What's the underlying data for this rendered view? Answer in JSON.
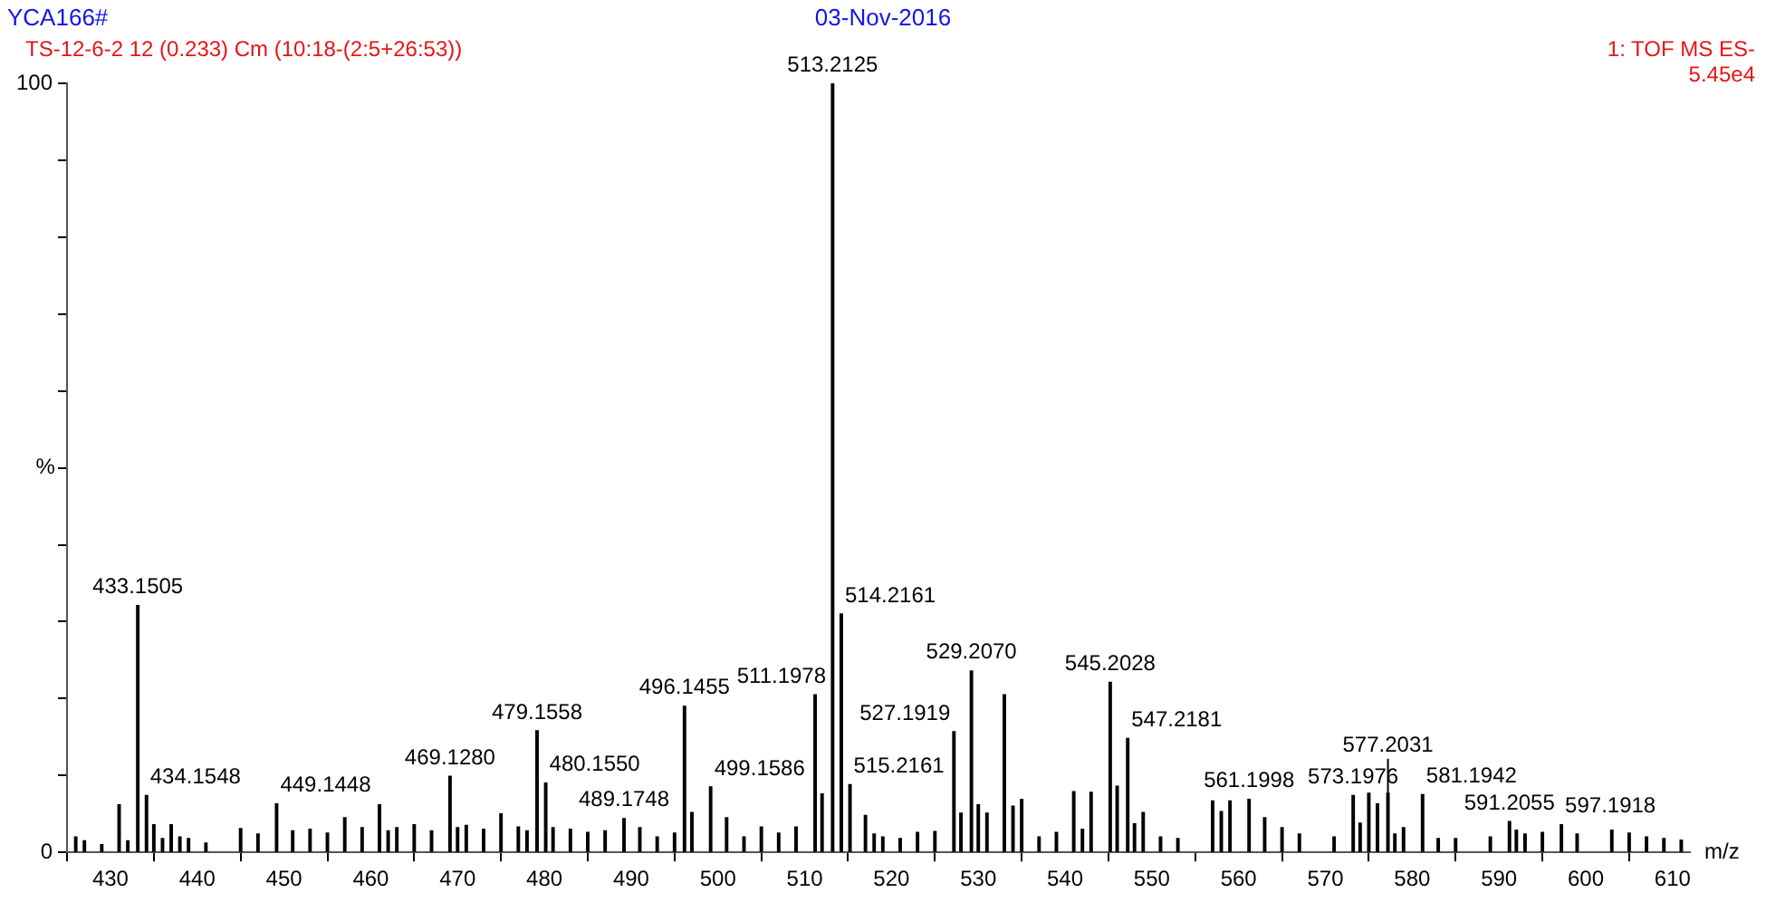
{
  "chart_data": {
    "type": "bar",
    "title": "YCA166#",
    "xlabel": "m/z",
    "ylabel": "%",
    "annotations": [
      "03-Nov-2016",
      "TS-12-6-2 12 (0.233) Cm (10:18-(2:5+26:53))",
      "1: TOF MS ES-",
      "5.45e4",
      {
        "text": "433.1505",
        "x": 433.1505,
        "y": 32.1
      },
      {
        "text": "434.1548",
        "x": 434.1548,
        "y": 7.4
      },
      {
        "text": "449.1448",
        "x": 449.1448,
        "y": 6.3
      },
      {
        "text": "469.1280",
        "x": 469.128,
        "y": 9.9
      },
      {
        "text": "479.1558",
        "x": 479.1558,
        "y": 15.8
      },
      {
        "text": "480.1550",
        "x": 480.155,
        "y": 9
      },
      {
        "text": "489.1748",
        "x": 489.1748,
        "y": 4.4
      },
      {
        "text": "496.1455",
        "x": 496.1455,
        "y": 19
      },
      {
        "text": "499.1586",
        "x": 499.1586,
        "y": 8.5
      },
      {
        "text": "511.1978",
        "x": 511.1978,
        "y": 20.5
      },
      {
        "text": "513.2125",
        "x": 513.2125,
        "y": 100
      },
      {
        "text": "514.2161",
        "x": 514.2161,
        "y": 31
      },
      {
        "text": "515.2161",
        "x": 515.2161,
        "y": 8.8
      },
      {
        "text": "527.1919",
        "x": 527.1919,
        "y": 15.7
      },
      {
        "text": "529.2070",
        "x": 529.207,
        "y": 23.6
      },
      {
        "text": "545.2028",
        "x": 545.2028,
        "y": 22.1
      },
      {
        "text": "547.2181",
        "x": 547.2181,
        "y": 14.8
      },
      {
        "text": "561.1998",
        "x": 561.1998,
        "y": 6.9
      },
      {
        "text": "573.1976",
        "x": 573.1976,
        "y": 7.4
      },
      {
        "text": "577.2031",
        "x": 577.2031,
        "y": 7.7
      },
      {
        "text": "581.1942",
        "x": 581.1942,
        "y": 7.5
      },
      {
        "text": "591.2055",
        "x": 591.2055,
        "y": 4
      },
      {
        "text": "597.1918",
        "x": 597.1918,
        "y": 3.6
      }
    ],
    "x": [
      426,
      427,
      429,
      431,
      432,
      433.1505,
      434.1548,
      435,
      436,
      437,
      438,
      439,
      441,
      445,
      447,
      449.1448,
      451,
      453,
      455,
      457,
      459,
      461,
      462,
      463,
      465,
      467,
      469.128,
      470,
      471,
      473,
      475,
      477,
      478,
      479.1558,
      480.155,
      481,
      483,
      485,
      487,
      489.1748,
      491,
      493,
      495,
      496.1455,
      497,
      499.1586,
      501,
      503,
      505,
      507,
      509,
      511.1978,
      512,
      513.2125,
      514.2161,
      515.2161,
      517,
      518,
      519,
      521,
      523,
      525,
      527.1919,
      528,
      529.207,
      530,
      531,
      533,
      534,
      535,
      537,
      539,
      541,
      542,
      543,
      545.2028,
      546,
      547.2181,
      548,
      549,
      551,
      553,
      557,
      558,
      559,
      561.1998,
      563,
      565,
      567,
      571,
      573.1976,
      574,
      575,
      576,
      577.2031,
      578,
      579,
      581.1942,
      583,
      585,
      589,
      591.2055,
      592,
      593,
      595,
      597.1918,
      599,
      603,
      605,
      607,
      609,
      611
    ],
    "values": [
      2,
      1.5,
      1,
      6.2,
      1.5,
      32.1,
      7.4,
      3.6,
      1.8,
      3.6,
      2,
      1.8,
      1.2,
      3.1,
      2.4,
      6.3,
      2.8,
      3,
      2.5,
      4.5,
      3.2,
      6.2,
      2.8,
      3.2,
      3.6,
      2.8,
      9.9,
      3.2,
      3.5,
      3,
      5,
      3.3,
      2.8,
      15.8,
      9,
      3.2,
      3,
      2.6,
      2.8,
      4.4,
      3.2,
      2,
      2.5,
      19,
      5.2,
      8.5,
      4.5,
      2,
      3.3,
      2.5,
      3.3,
      20.5,
      7.6,
      100,
      31,
      8.8,
      4.8,
      2.4,
      2,
      1.8,
      2.6,
      2.7,
      15.7,
      5.1,
      23.6,
      6.2,
      5.1,
      20.5,
      6,
      6.9,
      2,
      2.6,
      7.9,
      3,
      7.8,
      22.1,
      8.6,
      14.8,
      3.7,
      5.2,
      2,
      1.8,
      6.7,
      5.3,
      6.7,
      6.9,
      4.5,
      3.2,
      2.4,
      2,
      7.4,
      3.8,
      7.7,
      6.3,
      7.7,
      2.4,
      3.2,
      7.5,
      1.8,
      1.8,
      2,
      4,
      2.9,
      2.4,
      2.6,
      3.6,
      2.4,
      2.9,
      2.5,
      2,
      1.8,
      1.6
    ],
    "color": "#000000",
    "xlim": [
      425,
      612
    ],
    "xticks": [
      430,
      440,
      450,
      460,
      470,
      480,
      490,
      500,
      510,
      520,
      530,
      540,
      550,
      560,
      570,
      580,
      590,
      600,
      610
    ],
    "ylim": [
      0,
      100
    ],
    "yticks": [
      0,
      {
        "value": 10,
        "label": null
      },
      {
        "value": 20,
        "label": null
      },
      {
        "value": 30,
        "label": null
      },
      {
        "value": 40,
        "label": null
      },
      {
        "value": 50,
        "label": null
      },
      {
        "value": 60,
        "label": null
      },
      {
        "value": 70,
        "label": null
      },
      {
        "value": 80,
        "label": null
      },
      {
        "value": 90,
        "label": null
      },
      100
    ],
    "grid": false,
    "legend": false
  }
}
